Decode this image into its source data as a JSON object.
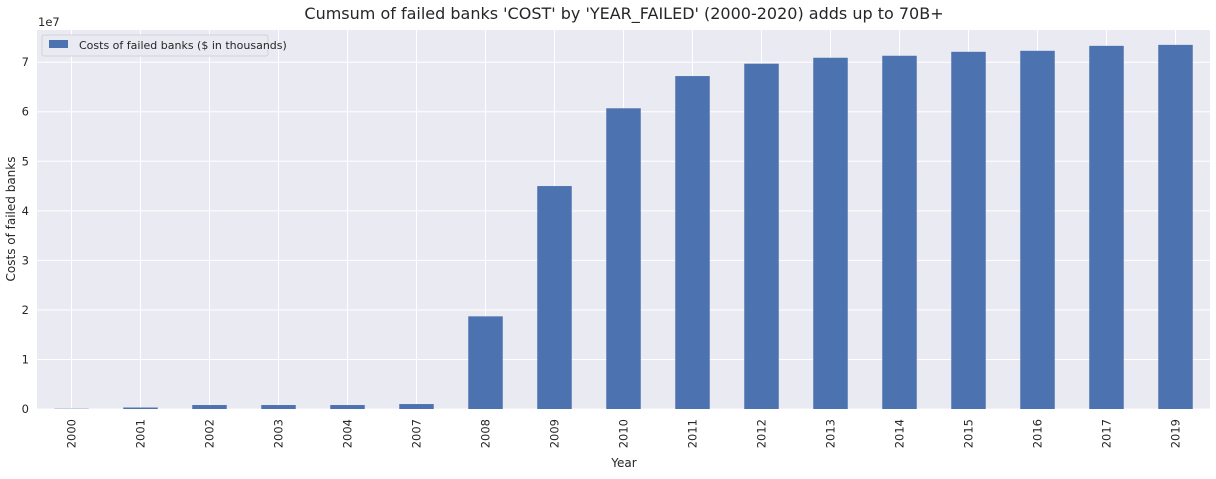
{
  "chart_data": {
    "type": "bar",
    "title": "Cumsum of failed banks 'COST' by 'YEAR_FAILED' (2000-2020) adds up to 70B+",
    "xlabel": "Year",
    "ylabel": "Costs of failed banks",
    "y_scale_label": "1e7",
    "y_unit_multiplier": 10000000,
    "ylim": [
      0,
      7.65
    ],
    "y_ticks": [
      0,
      1,
      2,
      3,
      4,
      5,
      6,
      7
    ],
    "grid": true,
    "legend_position": "top-left",
    "categories": [
      "2000",
      "2001",
      "2002",
      "2003",
      "2004",
      "2007",
      "2008",
      "2009",
      "2010",
      "2011",
      "2012",
      "2013",
      "2014",
      "2015",
      "2016",
      "2017",
      "2019"
    ],
    "series": [
      {
        "name": "Costs of failed banks ($ in thousands)",
        "color": "#4c72b0",
        "values": [
          0.005,
          0.03,
          0.08,
          0.08,
          0.08,
          0.1,
          1.87,
          4.5,
          6.07,
          6.72,
          6.97,
          7.09,
          7.13,
          7.21,
          7.23,
          7.33,
          7.35
        ]
      }
    ]
  }
}
